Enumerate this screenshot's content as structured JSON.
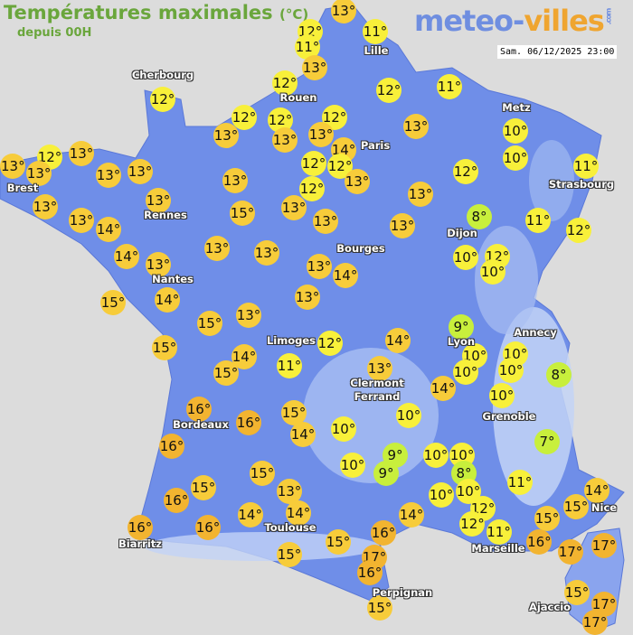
{
  "header": {
    "title": "Températures maximales",
    "unit": "(°C)",
    "subtitle": "depuis 00H",
    "timestamp": "Sam. 06/12/2025 23:00"
  },
  "logo": {
    "part1": "meteo-",
    "part2": "villes",
    "part3": ".com"
  },
  "colors": {
    "land": "#6f8ee8",
    "relief": "#a9bff2",
    "sea": "#dcdcdc",
    "cold": "#c8ef3c",
    "mild": "#f8f03a",
    "warm": "#f7cc3a",
    "hot": "#f2b430",
    "title": "#6aa63c"
  },
  "cities": [
    "Cherbourg",
    "Rouen",
    "Lille",
    "Paris",
    "Metz",
    "Strasbourg",
    "Brest",
    "Rennes",
    "Dijon",
    "Nantes",
    "Bourges",
    "Annecy",
    "Limoges",
    "Lyon",
    "Clermont\nFerrand",
    "Grenoble",
    "Bordeaux",
    "Toulouse",
    "Nice",
    "Marseille",
    "Biarritz",
    "Perpignan",
    "Ajaccio"
  ],
  "temperatures": [
    12,
    13,
    11,
    11,
    13,
    12,
    12,
    12,
    11,
    12,
    12,
    12,
    13,
    13,
    13,
    14,
    13,
    10,
    13,
    13,
    12,
    13,
    13,
    13,
    12,
    12,
    13,
    12,
    10,
    11,
    13,
    13,
    13,
    12,
    13,
    15,
    13,
    13,
    14,
    13,
    13,
    8,
    11,
    12,
    14,
    13,
    13,
    13,
    13,
    14,
    10,
    12,
    10,
    15,
    14,
    13,
    15,
    13,
    9,
    15,
    12,
    14,
    10,
    10,
    14,
    15,
    11,
    13,
    10,
    10,
    8,
    14,
    10,
    16,
    16,
    15,
    10,
    14,
    10,
    16,
    7,
    9,
    10,
    10,
    10,
    9,
    8,
    15,
    15,
    13,
    11,
    10,
    10,
    14,
    16,
    15,
    12,
    12,
    14,
    14,
    14,
    16,
    15,
    16,
    11,
    16,
    15,
    16,
    17,
    17,
    15,
    17,
    16,
    15,
    15,
    17,
    17
  ],
  "degree_symbol": "°"
}
